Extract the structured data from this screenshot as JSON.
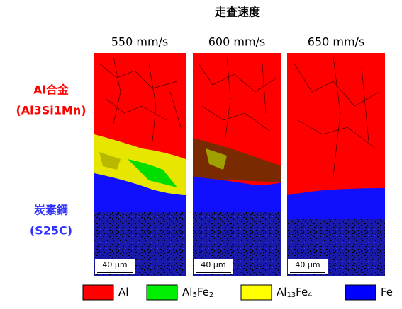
{
  "title": "走査速度",
  "speeds": [
    "550 mm/s",
    "600 mm/s",
    "650 mm/s"
  ],
  "materials": [
    {
      "name": "Al合金",
      "spec": "(Al3Si1Mn)",
      "color": "#ff0000"
    },
    {
      "name": "炭素鋼",
      "spec": "(S25C)",
      "color": "#3333ff"
    }
  ],
  "scale_bars": [
    "40 μm",
    "40 μm",
    "40 μm"
  ],
  "legend": [
    {
      "parts": [
        "Al"
      ],
      "color": "#ff0000"
    },
    {
      "parts": [
        "Al",
        "5",
        "Fe",
        "2"
      ],
      "color": "#00ee00"
    },
    {
      "parts": [
        "Al",
        "13",
        "Fe",
        "4"
      ],
      "color": "#ffff00"
    },
    {
      "parts": [
        "Fe"
      ],
      "color": "#0000ff"
    }
  ]
}
